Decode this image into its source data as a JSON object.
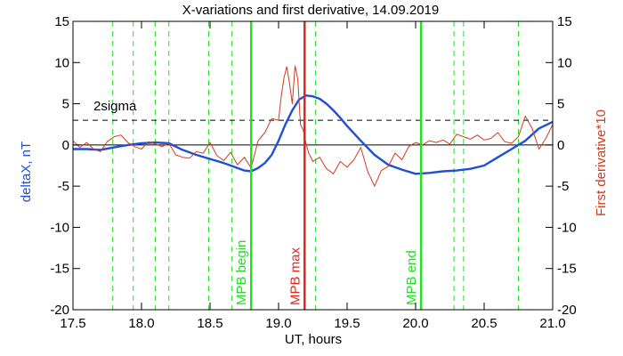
{
  "chart_data": {
    "type": "line",
    "title": "X-variations and first derivative, 14.09.2019",
    "xlabel": "UT, hours",
    "ylabel_left": "deltaX, nT",
    "ylabel_right": "First derivative*10",
    "xlim": [
      17.5,
      21.0
    ],
    "ylim_left": [
      -20,
      15
    ],
    "ylim_right": [
      -20,
      15
    ],
    "x_ticks": [
      "17.5",
      "18.0",
      "18.5",
      "19.0",
      "19.5",
      "20.0",
      "20.5",
      "21.0"
    ],
    "y_ticks_left": [
      "15",
      "10",
      "5",
      "0",
      "-5",
      "-10",
      "-15",
      "-20"
    ],
    "y_ticks_right": [
      "15",
      "10",
      "5",
      "0",
      "-5",
      "-10",
      "-15",
      "-20"
    ],
    "colors": {
      "deltaX": "#1f4fd6",
      "derivative": "#d23a1e",
      "mpb_green": "#22e022",
      "mpb_red": "#e3261a"
    },
    "threshold": {
      "label": "2sigma",
      "value": 3
    },
    "dashed_green_lines": [
      17.79,
      17.94,
      18.1,
      18.2,
      18.49,
      18.66,
      19.27,
      20.28,
      20.35,
      20.75
    ],
    "markers": [
      {
        "label": "MPB begin",
        "x": 18.8,
        "color": "#22e022"
      },
      {
        "label": "MPB max",
        "x": 19.19,
        "color": "#e3261a"
      },
      {
        "label": "MPB end",
        "x": 20.04,
        "color": "#22e022"
      }
    ],
    "series": [
      {
        "name": "deltaX",
        "axis": "left",
        "color": "#1f4fd6",
        "x": [
          17.5,
          17.6,
          17.7,
          17.8,
          17.9,
          18.0,
          18.1,
          18.2,
          18.3,
          18.4,
          18.5,
          18.6,
          18.7,
          18.75,
          18.8,
          18.85,
          18.9,
          18.95,
          19.0,
          19.05,
          19.1,
          19.15,
          19.2,
          19.25,
          19.3,
          19.35,
          19.4,
          19.45,
          19.5,
          19.6,
          19.7,
          19.8,
          19.9,
          20.0,
          20.1,
          20.2,
          20.3,
          20.4,
          20.5,
          20.6,
          20.7,
          20.8,
          20.9,
          21.0
        ],
        "values": [
          -0.5,
          -0.5,
          -0.6,
          -0.3,
          0.0,
          0.2,
          0.3,
          0.2,
          -0.6,
          -1.2,
          -1.7,
          -2.2,
          -2.8,
          -3.1,
          -3.2,
          -2.8,
          -2.2,
          -1.2,
          0.5,
          2.5,
          4.2,
          5.5,
          6.0,
          5.9,
          5.6,
          5.0,
          4.2,
          3.3,
          2.3,
          0.5,
          -1.2,
          -2.4,
          -3.0,
          -3.5,
          -3.4,
          -3.2,
          -3.1,
          -2.9,
          -2.5,
          -1.5,
          -0.5,
          0.5,
          2.0,
          2.8
        ]
      },
      {
        "name": "First derivative*10",
        "axis": "right",
        "color": "#d23a1e",
        "x": [
          17.5,
          17.55,
          17.6,
          17.65,
          17.7,
          17.75,
          17.8,
          17.85,
          17.9,
          17.95,
          18.0,
          18.05,
          18.1,
          18.15,
          18.2,
          18.25,
          18.3,
          18.35,
          18.4,
          18.45,
          18.5,
          18.55,
          18.6,
          18.65,
          18.7,
          18.75,
          18.8,
          18.85,
          18.9,
          18.95,
          19.0,
          19.02,
          19.04,
          19.06,
          19.08,
          19.1,
          19.12,
          19.14,
          19.16,
          19.18,
          19.2,
          19.22,
          19.25,
          19.3,
          19.35,
          19.4,
          19.45,
          19.5,
          19.55,
          19.6,
          19.65,
          19.7,
          19.75,
          19.8,
          19.85,
          19.9,
          19.95,
          20.0,
          20.05,
          20.1,
          20.15,
          20.2,
          20.25,
          20.3,
          20.35,
          20.4,
          20.45,
          20.5,
          20.55,
          20.6,
          20.65,
          20.7,
          20.75,
          20.8,
          20.85,
          20.9,
          20.95,
          21.0
        ],
        "values": [
          0.5,
          -0.3,
          0.3,
          -0.5,
          -0.8,
          0.4,
          1.0,
          1.2,
          0.3,
          -0.2,
          -0.5,
          0.4,
          0.1,
          -0.2,
          0.2,
          -1.2,
          -1.5,
          -1.6,
          -0.8,
          -1.0,
          0.3,
          -1.3,
          -1.9,
          -0.9,
          -2.4,
          -1.5,
          -2.8,
          0.5,
          1.5,
          3.2,
          3.0,
          6.0,
          8.2,
          9.5,
          7.5,
          5.0,
          9.6,
          8.0,
          2.5,
          1.8,
          0.2,
          -1.0,
          -2.0,
          -1.5,
          -2.9,
          -3.5,
          -2.0,
          -2.7,
          -1.8,
          -0.3,
          -3.2,
          -5.0,
          -3.1,
          -2.6,
          -1.0,
          -1.8,
          -0.2,
          0.3,
          0.0,
          0.5,
          0.3,
          0.6,
          0.1,
          1.3,
          1.0,
          0.7,
          1.2,
          0.6,
          0.8,
          1.5,
          0.4,
          0.2,
          1.0,
          3.5,
          2.0,
          -0.5,
          0.8,
          2.5
        ]
      }
    ]
  }
}
